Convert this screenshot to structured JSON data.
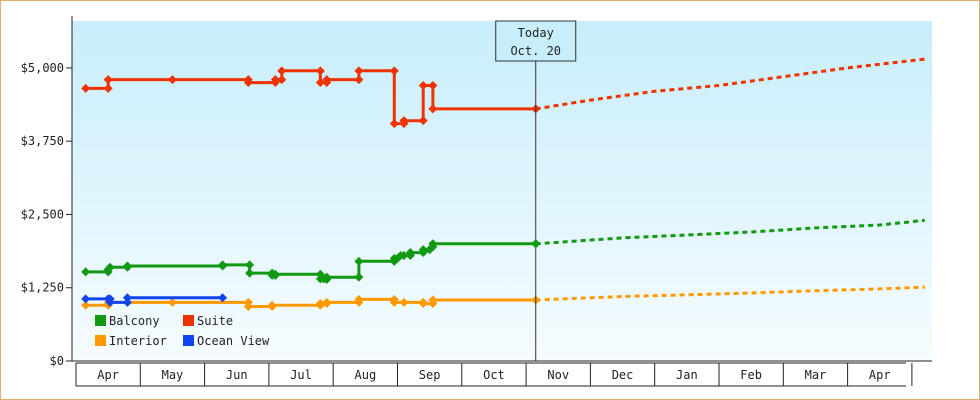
{
  "chart_data": {
    "type": "line",
    "title": "",
    "xlabel": "",
    "ylabel": "",
    "ylim": [
      0,
      5800
    ],
    "y_ticks": [
      {
        "value": 0,
        "label": "$0"
      },
      {
        "value": 1250,
        "label": "$1,250"
      },
      {
        "value": 2500,
        "label": "$2,500"
      },
      {
        "value": 3750,
        "label": "$3,750"
      },
      {
        "value": 5000,
        "label": "$5,000"
      }
    ],
    "x_months": [
      "Apr",
      "May",
      "Jun",
      "Jul",
      "Aug",
      "Sep",
      "Oct",
      "Nov",
      "Dec",
      "Jan",
      "Feb",
      "Mar",
      "Apr"
    ],
    "today": {
      "line1": "Today",
      "line2": "Oct. 20",
      "x": 6.65
    },
    "legend_position": "bottom-left",
    "grid": false,
    "series": [
      {
        "name": "Balcony",
        "color": "#119911",
        "points": [
          [
            -0.35,
            1520
          ],
          [
            0.0,
            1520
          ],
          [
            0.0,
            1560
          ],
          [
            0.03,
            1600
          ],
          [
            0.3,
            1600
          ],
          [
            0.3,
            1620
          ],
          [
            1.78,
            1620
          ],
          [
            1.78,
            1640
          ],
          [
            2.2,
            1640
          ],
          [
            2.2,
            1500
          ],
          [
            2.55,
            1500
          ],
          [
            2.55,
            1460
          ],
          [
            2.6,
            1460
          ],
          [
            2.6,
            1480
          ],
          [
            3.3,
            1480
          ],
          [
            3.3,
            1400
          ],
          [
            3.35,
            1400
          ],
          [
            3.4,
            1390
          ],
          [
            3.4,
            1430
          ],
          [
            3.9,
            1430
          ],
          [
            3.9,
            1700
          ],
          [
            4.45,
            1700
          ],
          [
            4.45,
            1750
          ],
          [
            4.5,
            1750
          ],
          [
            4.55,
            1800
          ],
          [
            4.6,
            1800
          ],
          [
            4.7,
            1800
          ],
          [
            4.7,
            1850
          ],
          [
            4.9,
            1850
          ],
          [
            4.9,
            1900
          ],
          [
            5.0,
            1900
          ],
          [
            5.0,
            1900
          ],
          [
            5.05,
            1950
          ],
          [
            5.05,
            2000
          ],
          [
            6.65,
            2000
          ]
        ],
        "projection": [
          [
            6.65,
            2000
          ],
          [
            8.0,
            2100
          ],
          [
            9.0,
            2150
          ],
          [
            10.0,
            2200
          ],
          [
            11.0,
            2270
          ],
          [
            12.0,
            2320
          ],
          [
            12.7,
            2400
          ]
        ]
      },
      {
        "name": "Suite",
        "color": "#ee3300",
        "points": [
          [
            -0.35,
            4650
          ],
          [
            0.0,
            4650
          ],
          [
            0.0,
            4800
          ],
          [
            1.0,
            4800
          ],
          [
            2.18,
            4800
          ],
          [
            2.18,
            4750
          ],
          [
            2.6,
            4750
          ],
          [
            2.6,
            4800
          ],
          [
            2.7,
            4800
          ],
          [
            2.7,
            4950
          ],
          [
            3.3,
            4950
          ],
          [
            3.3,
            4750
          ],
          [
            3.4,
            4750
          ],
          [
            3.4,
            4800
          ],
          [
            3.9,
            4800
          ],
          [
            3.9,
            4950
          ],
          [
            4.45,
            4950
          ],
          [
            4.45,
            4050
          ],
          [
            4.6,
            4050
          ],
          [
            4.6,
            4100
          ],
          [
            4.9,
            4100
          ],
          [
            4.9,
            4700
          ],
          [
            5.05,
            4700
          ],
          [
            5.05,
            4300
          ],
          [
            6.65,
            4300
          ]
        ],
        "projection": [
          [
            6.65,
            4300
          ],
          [
            7.5,
            4450
          ],
          [
            8.5,
            4600
          ],
          [
            9.5,
            4700
          ],
          [
            10.5,
            4850
          ],
          [
            11.5,
            5000
          ],
          [
            12.7,
            5150
          ]
        ]
      },
      {
        "name": "Interior",
        "color": "#ff9900",
        "points": [
          [
            -0.35,
            950
          ],
          [
            0.0,
            950
          ],
          [
            0.0,
            1000
          ],
          [
            1.0,
            1000
          ],
          [
            2.18,
            1000
          ],
          [
            2.18,
            930
          ],
          [
            2.55,
            930
          ],
          [
            2.55,
            950
          ],
          [
            3.3,
            950
          ],
          [
            3.3,
            980
          ],
          [
            3.4,
            980
          ],
          [
            3.4,
            1000
          ],
          [
            3.9,
            1000
          ],
          [
            3.9,
            1050
          ],
          [
            4.45,
            1050
          ],
          [
            4.45,
            1000
          ],
          [
            4.6,
            1000
          ],
          [
            4.9,
            1000
          ],
          [
            4.9,
            980
          ],
          [
            5.05,
            980
          ],
          [
            5.05,
            1040
          ],
          [
            6.65,
            1040
          ]
        ],
        "projection": [
          [
            6.65,
            1040
          ],
          [
            8.0,
            1100
          ],
          [
            9.0,
            1130
          ],
          [
            10.0,
            1160
          ],
          [
            11.0,
            1200
          ],
          [
            12.0,
            1230
          ],
          [
            12.7,
            1260
          ]
        ]
      },
      {
        "name": "Ocean View",
        "color": "#1144ee",
        "points": [
          [
            -0.35,
            1060
          ],
          [
            0.0,
            1060
          ],
          [
            0.03,
            1060
          ],
          [
            0.03,
            1000
          ],
          [
            0.3,
            1000
          ],
          [
            0.3,
            1080
          ],
          [
            1.78,
            1080
          ]
        ],
        "projection": []
      }
    ]
  }
}
